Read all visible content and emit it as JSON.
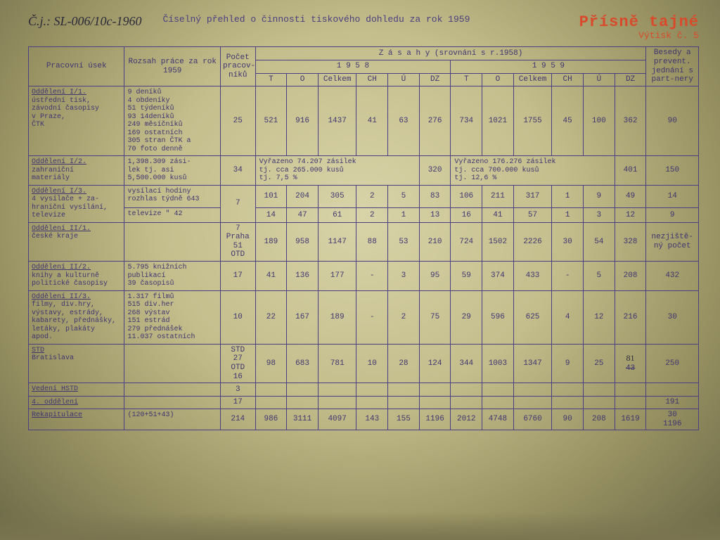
{
  "header": {
    "doc_ref": "Č.j.: SL-006/10c-1960",
    "title": "Číselný přehled o činnosti tiskového dohledu za rok 1959",
    "stamp_main": "Přísně tajné",
    "stamp_sub": "Výtisk č. 5"
  },
  "thead": {
    "col_usek": "Pracovní úsek",
    "col_rozsah": "Rozsah práce za rok 1959",
    "col_pocet": "Počet pracov-níků",
    "col_zasahy": "Z á s a h y   (srovnání s r.1958)",
    "col_1958": "1 9 5 8",
    "col_1959": "1 9 5 9",
    "col_besedy": "Besedy a prevent. jednání s part-nery",
    "sub": {
      "T": "T",
      "O": "O",
      "Celkem": "Celkem",
      "CH": "CH",
      "U": "Ú",
      "DZ": "DZ"
    }
  },
  "rows": [
    {
      "label": "<u>Oddělení I/1.</u>\nústřední tisk,\nzávodní časopisy\nv Praze,\nČTK",
      "scope": "  9 deníků\n  4 obdeníky\n 51 týdeníků\n 93 14deníků\n249 měsíčníků\n169 ostatních\n305 stran ČTK a\n 70 foto denně",
      "prac": "25",
      "y58": [
        "521",
        "916",
        "1437",
        "41",
        "63",
        "276"
      ],
      "y59": [
        "734",
        "1021",
        "1755",
        "45",
        "100",
        "362"
      ],
      "bes": "90"
    },
    {
      "label": "<u>Oddělení I/2.</u>\nzahraniční\nmateriály",
      "scope": "1,398.309 zási-\nlek tj. asi\n5,500.000 kusů",
      "prac": "34",
      "wide58": "Vyřazeno   74.207 zásilek\ntj. cca   265.000 kusů\ntj.            7,5 %",
      "dz58": "320",
      "wide59": "Vyřazeno  176.276 zásilek\ntj. cca   700.000 kusů\ntj.           12,6 %",
      "dz59": "401",
      "bes": "150"
    },
    {
      "label": "<u>Oddělení I/3.</u>\n4 vysílače + za-\nhraniční vysílání,\ntelevize",
      "scope_a": "vysílací hodiny\nrozhlas týdně 643",
      "scope_b": "televize   \"   42",
      "prac": "7",
      "y58a": [
        "101",
        "204",
        "305",
        "2",
        "5",
        "83"
      ],
      "y59a": [
        "106",
        "211",
        "317",
        "1",
        "9",
        "49"
      ],
      "bes_a": "14",
      "y58b": [
        "14",
        "47",
        "61",
        "2",
        "1",
        "13"
      ],
      "y59b": [
        "16",
        "41",
        "57",
        "1",
        "3",
        "12"
      ],
      "bes_b": "9"
    },
    {
      "label": "<u>Oddělení II/1.</u>\nčeské kraje",
      "scope": "",
      "prac": "7\nPraha\n51\nOTD",
      "y58": [
        "189",
        "958",
        "1147",
        "88",
        "53",
        "210"
      ],
      "y59": [
        "724",
        "1502",
        "2226",
        "30",
        "54",
        "328"
      ],
      "bes": "nezjiště-\nný počet"
    },
    {
      "label": "<u>Oddělení II/2.</u>\nknihy a kulturně\npolitické časopisy",
      "scope": "5.795 knižních\n      publikací\n   39 časopisů",
      "prac": "17",
      "y58": [
        "41",
        "136",
        "177",
        "-",
        "3",
        "95"
      ],
      "y59": [
        "59",
        "374",
        "433",
        "-",
        "5",
        "208"
      ],
      "bes": "432"
    },
    {
      "label": "<u>Oddělení II/3.</u>\nfilmy, div.hry,\nvýstavy, estrády,\nkabarety, přednášky,\nletáky, plakáty\napod.",
      "scope": " 1.317 filmů\n   515 div.her\n   268 výstav\n   151 estrád\n   279 přednášek\n11.037 ostatních",
      "prac": "10",
      "y58": [
        "22",
        "167",
        "189",
        "-",
        "2",
        "75"
      ],
      "y59": [
        "29",
        "596",
        "625",
        "4",
        "12",
        "216"
      ],
      "bes": "30"
    },
    {
      "label": "<u>STD</u>\nBratislava",
      "scope": "",
      "prac": "STD\n27\nOTD\n16",
      "y58": [
        "98",
        "683",
        "781",
        "10",
        "28",
        "124"
      ],
      "y59": [
        "344",
        "1003",
        "1347",
        "9",
        "25",
        "81\n43"
      ],
      "bes": "250"
    },
    {
      "label": "<u>Vedení HSTD</u>",
      "scope": "",
      "prac": "3",
      "y58": [
        "",
        "",
        "",
        "",
        "",
        ""
      ],
      "y59": [
        "",
        "",
        "",
        "",
        "",
        ""
      ],
      "bes": ""
    },
    {
      "label": "<u>4. oddělení</u>",
      "scope": "",
      "prac": "17",
      "y58": [
        "",
        "",
        "",
        "",
        "",
        ""
      ],
      "y59": [
        "",
        "",
        "",
        "",
        "",
        ""
      ],
      "bes": "191"
    },
    {
      "label": "<u>Rekapitulace</u>",
      "scope": "(120+51+43)",
      "prac": "214",
      "y58": [
        "986",
        "3111",
        "4097",
        "143",
        "155",
        "1196"
      ],
      "y59": [
        "2012",
        "4748",
        "6760",
        "90",
        "208",
        "1619"
      ],
      "bes": "30\n1196"
    }
  ]
}
